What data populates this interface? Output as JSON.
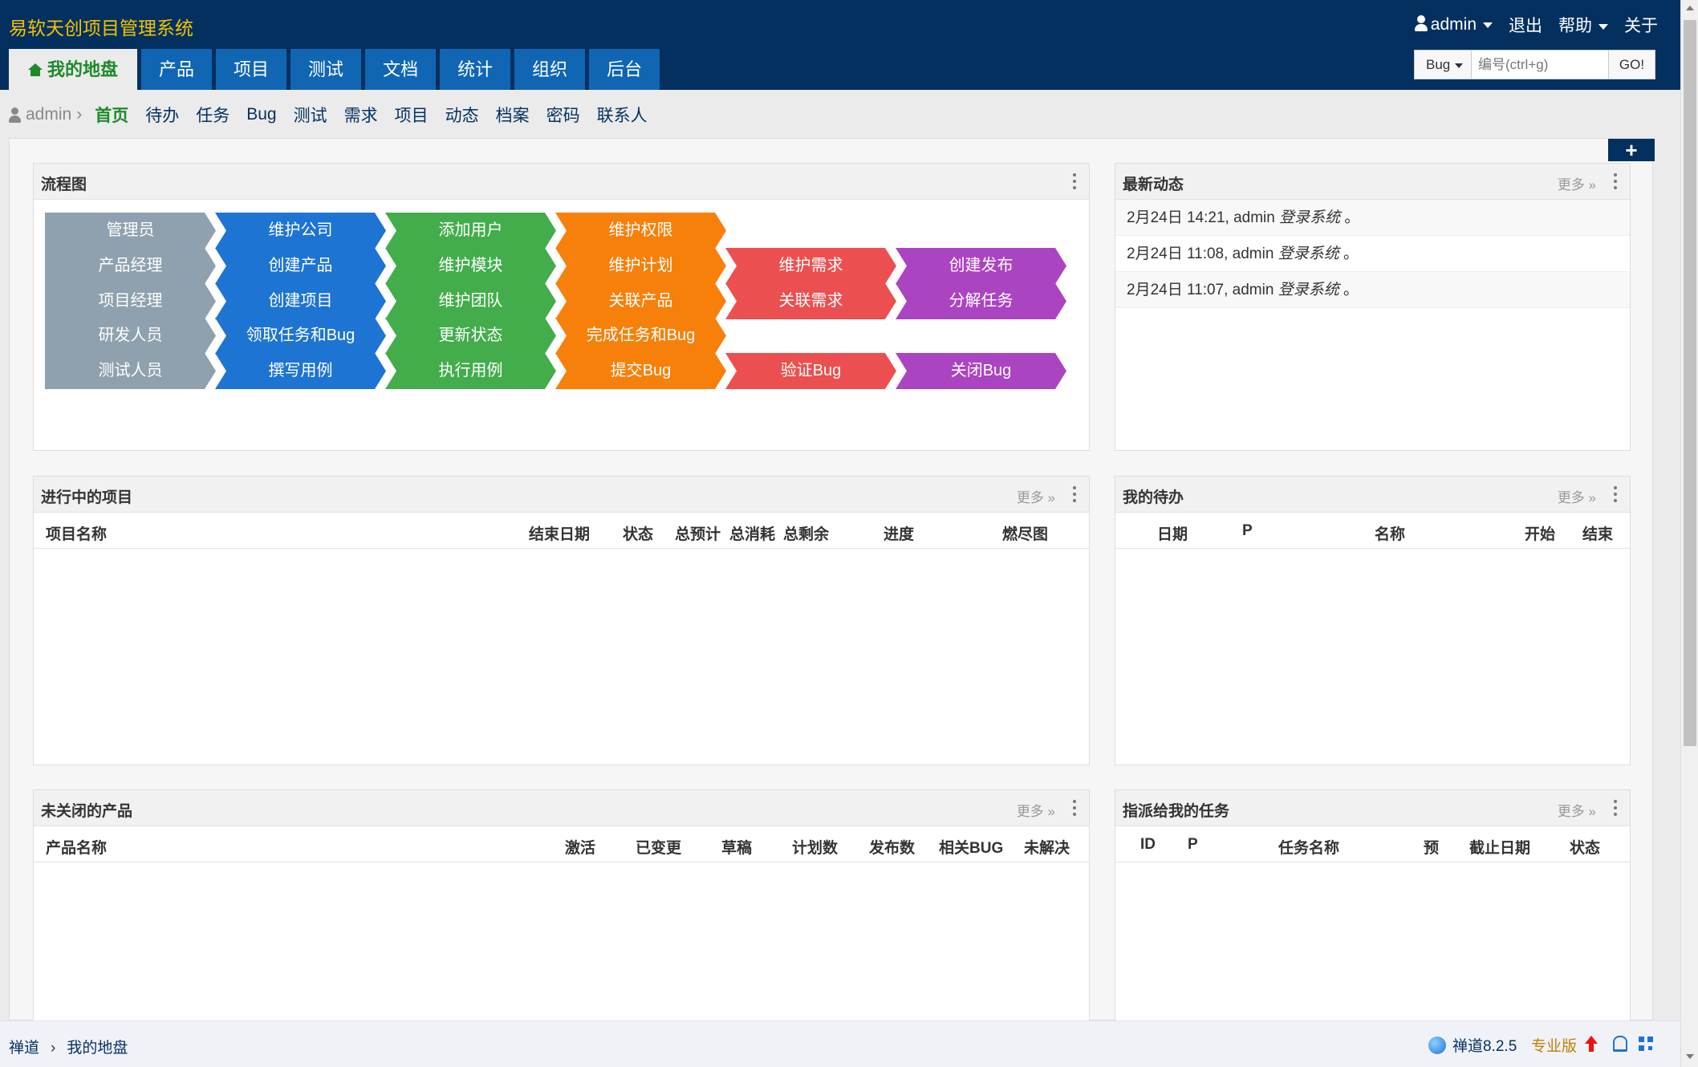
{
  "header": {
    "brand": "易软天创项目管理系统",
    "user_menu": "admin",
    "logout": "退出",
    "help": "帮助",
    "about": "关于",
    "nav": [
      "我的地盘",
      "产品",
      "项目",
      "测试",
      "文档",
      "统计",
      "组织",
      "后台"
    ],
    "search": {
      "type": "Bug",
      "placeholder": "编号(ctrl+g)",
      "go": "GO!"
    }
  },
  "sub_nav": {
    "crumb": "admin",
    "items": [
      "首页",
      "待办",
      "任务",
      "Bug",
      "测试",
      "需求",
      "项目",
      "动态",
      "档案",
      "密码",
      "联系人"
    ]
  },
  "add_block": "+",
  "flow_panel": {
    "title": "流程图",
    "rows": [
      [
        {
          "label": "管理员",
          "color": "gray"
        },
        {
          "label": "维护公司",
          "color": "blue"
        },
        {
          "label": "添加用户",
          "color": "green"
        },
        {
          "label": "维护权限",
          "color": "orange"
        }
      ],
      [
        {
          "label": "产品经理",
          "color": "gray"
        },
        {
          "label": "创建产品",
          "color": "blue"
        },
        {
          "label": "维护模块",
          "color": "green"
        },
        {
          "label": "维护计划",
          "color": "orange"
        },
        {
          "label": "维护需求",
          "color": "red"
        },
        {
          "label": "创建发布",
          "color": "purple"
        }
      ],
      [
        {
          "label": "项目经理",
          "color": "gray"
        },
        {
          "label": "创建项目",
          "color": "blue"
        },
        {
          "label": "维护团队",
          "color": "green"
        },
        {
          "label": "关联产品",
          "color": "orange"
        },
        {
          "label": "关联需求",
          "color": "red"
        },
        {
          "label": "分解任务",
          "color": "purple"
        }
      ],
      [
        {
          "label": "研发人员",
          "color": "gray"
        },
        {
          "label": "领取任务和Bug",
          "color": "blue"
        },
        {
          "label": "更新状态",
          "color": "green"
        },
        {
          "label": "完成任务和Bug",
          "color": "orange"
        }
      ],
      [
        {
          "label": "测试人员",
          "color": "gray"
        },
        {
          "label": "撰写用例",
          "color": "blue"
        },
        {
          "label": "执行用例",
          "color": "green"
        },
        {
          "label": "提交Bug",
          "color": "orange"
        },
        {
          "label": "验证Bug",
          "color": "red"
        },
        {
          "label": "关闭Bug",
          "color": "purple"
        }
      ]
    ]
  },
  "activity_panel": {
    "title": "最新动态",
    "more": "更多 »",
    "items": [
      {
        "time": "2月24日 14:21, admin ",
        "action": "登录系统",
        "end": " 。"
      },
      {
        "time": "2月24日 11:08, admin ",
        "action": "登录系统",
        "end": " 。"
      },
      {
        "time": "2月24日 11:07, admin ",
        "action": "登录系统",
        "end": " 。"
      }
    ]
  },
  "projects_panel": {
    "title": "进行中的项目",
    "more": "更多 »",
    "columns": [
      "项目名称",
      "结束日期",
      "状态",
      "总预计",
      "总消耗",
      "总剩余",
      "进度",
      "燃尽图"
    ]
  },
  "todo_panel": {
    "title": "我的待办",
    "more": "更多 »",
    "columns": [
      "日期",
      "P",
      "名称",
      "开始",
      "结束"
    ]
  },
  "products_panel": {
    "title": "未关闭的产品",
    "more": "更多 »",
    "columns": [
      "产品名称",
      "激活",
      "已变更",
      "草稿",
      "计划数",
      "发布数",
      "相关BUG",
      "未解决"
    ]
  },
  "tasks_panel": {
    "title": "指派给我的任务",
    "more": "更多 »",
    "columns": [
      "ID",
      "P",
      "任务名称",
      "预",
      "截止日期",
      "状态"
    ]
  },
  "footer": {
    "crumb_root": "禅道",
    "crumb_page": "我的地盘",
    "version": "禅道8.2.5",
    "edition": "专业版"
  },
  "colors": {
    "header_bg": "#03305f",
    "brand": "#f3c200",
    "nav_tab": "#1066b3",
    "active_green": "#1c8a2a",
    "gray": "#8fa1ae",
    "blue": "#1d74d3",
    "green": "#43ad4c",
    "orange": "#f7800b",
    "red": "#ec4f4f",
    "purple": "#ab44c1"
  }
}
